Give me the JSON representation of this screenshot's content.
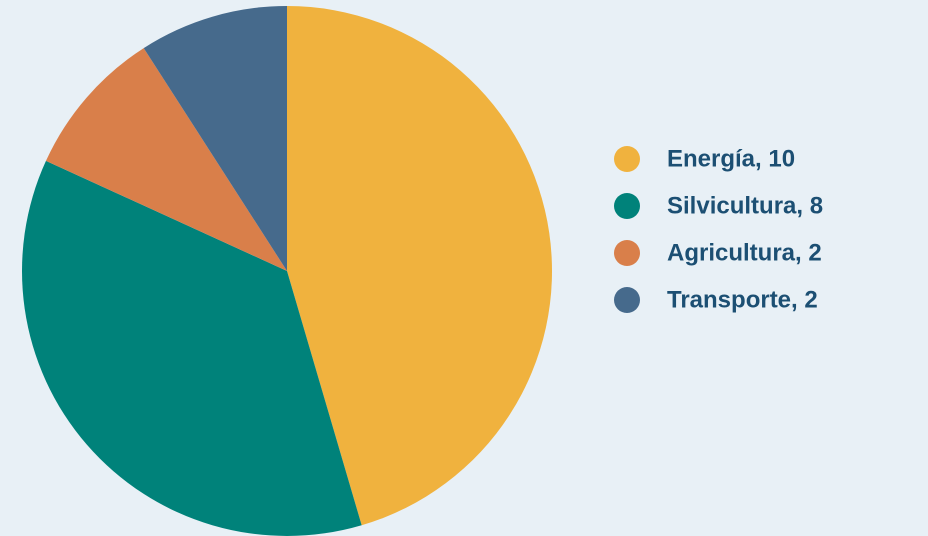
{
  "chart_data": {
    "type": "pie",
    "categories": [
      "Energía, 10",
      "Silvicultura, 8",
      "Agricultura, 2",
      "Transporte, 2"
    ],
    "values": [
      10,
      8,
      2,
      2
    ],
    "colors": [
      "#f0b23e",
      "#00827a",
      "#d97f4a",
      "#466a8c"
    ],
    "legend": "right"
  }
}
